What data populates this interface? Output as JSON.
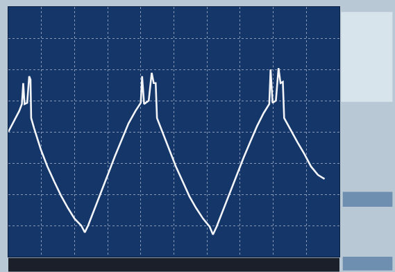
{
  "chart_data": {
    "type": "line",
    "x": [
      0,
      0.16,
      0.33,
      0.41,
      0.45,
      0.49,
      0.57,
      0.63,
      0.67,
      0.69,
      0.78,
      0.98,
      1.18,
      1.39,
      1.59,
      1.8,
      2.0,
      2.2,
      2.31,
      2.41,
      2.61,
      2.82,
      3.02,
      3.22,
      3.43,
      3.63,
      3.84,
      4.0,
      4.04,
      4.1,
      4.24,
      4.33,
      4.39,
      4.45,
      4.49,
      4.65,
      4.86,
      5.06,
      5.27,
      5.47,
      5.67,
      5.88,
      6.08,
      6.18,
      6.29,
      6.49,
      6.69,
      6.9,
      7.1,
      7.31,
      7.51,
      7.71,
      7.88,
      7.92,
      7.98,
      8.08,
      8.16,
      8.22,
      8.29,
      8.33,
      8.53,
      8.73,
      8.94,
      9.14,
      9.35,
      9.55
    ],
    "values": [
      0,
      0.33,
      0.67,
      0.89,
      1.56,
      0.89,
      0.93,
      1.78,
      1.67,
      0.44,
      0.11,
      -0.56,
      -1.11,
      -1.6,
      -2.04,
      -2.44,
      -2.78,
      -3.0,
      -3.22,
      -3.0,
      -2.44,
      -1.89,
      -1.33,
      -0.78,
      -0.22,
      0.27,
      0.67,
      0.93,
      1.78,
      0.89,
      1.0,
      1.89,
      1.56,
      1.56,
      0.44,
      0,
      -0.56,
      -1.11,
      -1.6,
      -2.07,
      -2.44,
      -2.78,
      -3.04,
      -3.29,
      -3.04,
      -2.49,
      -1.93,
      -1.38,
      -0.84,
      -0.31,
      0.18,
      0.6,
      0.89,
      2.0,
      0.93,
      1.0,
      2.04,
      1.56,
      1.6,
      0.44,
      0.04,
      -0.33,
      -0.71,
      -1.11,
      -1.38,
      -1.51
    ],
    "color": "#f2f4f8",
    "xlim": [
      0,
      10
    ],
    "ylim": [
      -4,
      4
    ],
    "xticks": [
      0,
      1,
      2,
      3,
      4,
      5,
      6,
      7,
      8,
      9,
      10
    ],
    "yticks": [
      -4,
      -3,
      -2,
      -1,
      0,
      1,
      2,
      3,
      4
    ],
    "grid": true,
    "tick_labels": false
  }
}
